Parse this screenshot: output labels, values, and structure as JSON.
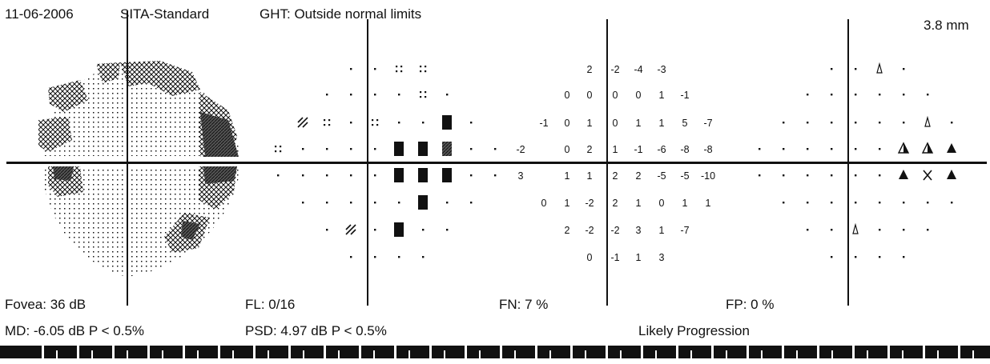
{
  "header": {
    "date": "11-06-2006",
    "strategy": "SITA-Standard",
    "ght": "GHT: Outside normal limits",
    "pupil": "3.8 mm"
  },
  "stats": {
    "fovea": "Fovea: 36 dB",
    "fixation_losses": "FL: 0/16",
    "false_negatives": "FN:  7 %",
    "false_positives": "FP:  0 %",
    "md": "MD:  -6.05 dB  P < 0.5%",
    "psd": "PSD:  4.97 dB  P < 0.5%",
    "progression": "Likely Progression"
  },
  "grid": {
    "rows": [
      [
        null,
        null,
        null,
        0,
        0,
        0,
        0,
        null,
        null,
        null
      ],
      [
        null,
        null,
        0,
        0,
        0,
        0,
        0,
        0,
        null,
        null
      ],
      [
        null,
        0,
        0,
        0,
        0,
        0,
        0,
        0,
        0,
        null
      ],
      [
        0,
        0,
        0,
        0,
        0,
        0,
        0,
        0,
        0,
        0
      ],
      [
        0,
        0,
        0,
        0,
        0,
        0,
        0,
        0,
        0,
        0
      ],
      [
        null,
        0,
        0,
        0,
        0,
        0,
        0,
        0,
        0,
        null
      ],
      [
        null,
        null,
        0,
        0,
        0,
        0,
        0,
        0,
        null,
        null
      ],
      [
        null,
        null,
        null,
        0,
        0,
        0,
        0,
        null,
        null,
        null
      ]
    ]
  },
  "pattern_deviation_symbols": {
    "legend": "0 = normal dot, 1 = P<5%, 2 = P<2%, 3 = P<1%, 4 = P<0.5%",
    "rows": [
      [
        null,
        null,
        null,
        0,
        0,
        1,
        1,
        null,
        null,
        null
      ],
      [
        null,
        null,
        0,
        0,
        0,
        0,
        1,
        0,
        null,
        null
      ],
      [
        null,
        2,
        1,
        0,
        1,
        0,
        0,
        4,
        0,
        null
      ],
      [
        1,
        0,
        0,
        0,
        0,
        4,
        4,
        3,
        0,
        0
      ],
      [
        0,
        0,
        0,
        0,
        0,
        4,
        4,
        4,
        0,
        0
      ],
      [
        null,
        0,
        0,
        0,
        0,
        0,
        4,
        0,
        0,
        null
      ],
      [
        null,
        null,
        0,
        2,
        0,
        4,
        0,
        0,
        null,
        null
      ],
      [
        null,
        null,
        null,
        0,
        0,
        0,
        0,
        null,
        null,
        null
      ]
    ]
  },
  "pattern_deviation_values": {
    "rows": [
      [
        null,
        null,
        null,
        "2",
        "-2",
        "-4",
        "-3",
        null,
        null,
        null
      ],
      [
        null,
        null,
        "0",
        "0",
        "0",
        "0",
        "1",
        "-1",
        null,
        null
      ],
      [
        null,
        "-1",
        "0",
        "1",
        "0",
        "1",
        "1",
        "5",
        "-7",
        null
      ],
      [
        "-2",
        "",
        "0",
        "2",
        "1",
        "-1",
        "-6",
        "-8",
        "-8",
        null
      ],
      [
        "3",
        "",
        "1",
        "1",
        "2",
        "2",
        "-5",
        "-5",
        "-10",
        null
      ],
      [
        null,
        "0",
        "1",
        "-2",
        "2",
        "1",
        "0",
        "1",
        "1",
        null
      ],
      [
        null,
        null,
        "2",
        "-2",
        "-2",
        "3",
        "1",
        "-7",
        null,
        null
      ],
      [
        null,
        null,
        null,
        "0",
        "-1",
        "1",
        "3",
        null,
        null,
        null
      ]
    ]
  },
  "progression_symbols": {
    "legend": "0 = dot, 1 = open triangle (deterioration), 2 = half-filled triangle, 3 = filled triangle (likely progression), 4 = X (out of range)",
    "rows": [
      [
        null,
        null,
        null,
        0,
        0,
        1,
        0,
        null,
        null,
        null
      ],
      [
        null,
        null,
        0,
        0,
        0,
        0,
        0,
        0,
        null,
        null
      ],
      [
        null,
        0,
        0,
        0,
        0,
        0,
        0,
        1,
        0,
        null
      ],
      [
        0,
        0,
        0,
        0,
        0,
        0,
        2,
        2,
        3,
        null
      ],
      [
        0,
        0,
        0,
        0,
        0,
        0,
        3,
        4,
        3,
        null
      ],
      [
        null,
        0,
        0,
        0,
        0,
        0,
        0,
        0,
        0,
        null
      ],
      [
        null,
        null,
        0,
        0,
        1,
        0,
        0,
        0,
        null,
        null
      ],
      [
        null,
        null,
        null,
        0,
        0,
        0,
        0,
        null,
        null,
        null
      ]
    ]
  },
  "grayscale": {
    "regions": [
      {
        "shade": "light",
        "where": "most of field"
      },
      {
        "shade": "medium",
        "where": "superior arcuate and nasal step"
      },
      {
        "shade": "dark",
        "where": "nasal step at horizontal meridian"
      }
    ]
  },
  "colors": {
    "ink": "#111111",
    "paper": "#ffffff"
  }
}
